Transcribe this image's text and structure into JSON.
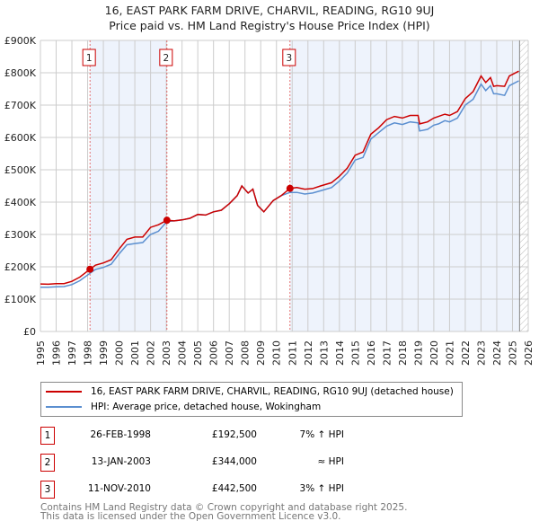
{
  "chart_data": {
    "type": "line",
    "title": "16, EAST PARK FARM DRIVE, CHARVIL, READING, RG10 9UJ",
    "subtitle": "Price paid vs. HM Land Registry's House Price Index (HPI)",
    "xlim": [
      1995,
      2026
    ],
    "ylim": [
      0,
      900000
    ],
    "x_ticks": [
      "1995",
      "1996",
      "1997",
      "1998",
      "1999",
      "2000",
      "2001",
      "2002",
      "2003",
      "2004",
      "2005",
      "2006",
      "2007",
      "2008",
      "2009",
      "2010",
      "2011",
      "2012",
      "2013",
      "2014",
      "2015",
      "2016",
      "2017",
      "2018",
      "2019",
      "2020",
      "2021",
      "2022",
      "2023",
      "2024",
      "2025",
      "2026"
    ],
    "y_ticks": [
      {
        "v": 0,
        "label": "£0"
      },
      {
        "v": 100000,
        "label": "£100K"
      },
      {
        "v": 200000,
        "label": "£200K"
      },
      {
        "v": 300000,
        "label": "£300K"
      },
      {
        "v": 400000,
        "label": "£400K"
      },
      {
        "v": 500000,
        "label": "£500K"
      },
      {
        "v": 600000,
        "label": "£600K"
      },
      {
        "v": 700000,
        "label": "£700K"
      },
      {
        "v": 800000,
        "label": "£800K"
      },
      {
        "v": 900000,
        "label": "£900K"
      }
    ],
    "grid": true,
    "shaded_ranges": [
      [
        1998.15,
        2003.04
      ],
      [
        2010.86,
        2025.45
      ]
    ],
    "hatch_from": 2025.45,
    "series": [
      {
        "name": "16, EAST PARK FARM DRIVE, CHARVIL, READING, RG10 9UJ (detached house)",
        "color": "#cc0000",
        "x": [
          1995,
          1995.5,
          1996,
          1996.5,
          1997,
          1997.5,
          1998.15,
          1998.5,
          1999,
          1999.5,
          2000,
          2000.5,
          2001,
          2001.5,
          2002,
          2002.5,
          2003.04,
          2003.5,
          2004,
          2004.5,
          2005,
          2005.5,
          2006,
          2006.5,
          2007,
          2007.5,
          2007.8,
          2008.2,
          2008.5,
          2008.8,
          2009.2,
          2009.8,
          2010.3,
          2010.86,
          2011.3,
          2011.8,
          2012.3,
          2012.8,
          2013.5,
          2014,
          2014.5,
          2015,
          2015.5,
          2016,
          2016.5,
          2017,
          2017.5,
          2018,
          2018.5,
          2019,
          2019.1,
          2019.6,
          2020,
          2020.3,
          2020.7,
          2021,
          2021.5,
          2022,
          2022.5,
          2023,
          2023.3,
          2023.6,
          2023.8,
          2024,
          2024.5,
          2024.8,
          2025,
          2025.4
        ],
        "y": [
          147000,
          146000,
          148000,
          148000,
          155000,
          168000,
          192500,
          205000,
          212000,
          222000,
          255000,
          285000,
          292000,
          292000,
          322000,
          330000,
          344000,
          342000,
          345000,
          350000,
          362000,
          360000,
          370000,
          375000,
          395000,
          420000,
          450000,
          428000,
          440000,
          390000,
          370000,
          405000,
          420000,
          442500,
          445000,
          440000,
          442000,
          450000,
          460000,
          480000,
          505000,
          545000,
          555000,
          610000,
          630000,
          655000,
          665000,
          660000,
          668000,
          668000,
          642000,
          648000,
          660000,
          665000,
          672000,
          668000,
          680000,
          720000,
          742000,
          790000,
          770000,
          785000,
          758000,
          760000,
          758000,
          790000,
          795000,
          805000
        ]
      },
      {
        "name": "HPI: Average price, detached house, Wokingham",
        "color": "#5b8fd0",
        "x": [
          1995,
          1995.5,
          1996,
          1996.5,
          1997,
          1997.5,
          1998.15,
          1998.5,
          1999,
          1999.5,
          2000,
          2000.5,
          2001,
          2001.5,
          2002,
          2002.5,
          2003.04,
          2003.5,
          2004,
          2004.5,
          2005,
          2005.5,
          2006,
          2006.5,
          2007,
          2007.5,
          2007.8,
          2008.2,
          2008.5,
          2008.8,
          2009.2,
          2009.8,
          2010.3,
          2010.86,
          2011.3,
          2011.8,
          2012.3,
          2012.8,
          2013.5,
          2014,
          2014.5,
          2015,
          2015.5,
          2016,
          2016.5,
          2017,
          2017.5,
          2018,
          2018.5,
          2019,
          2019.1,
          2019.6,
          2020,
          2020.3,
          2020.7,
          2021,
          2021.5,
          2022,
          2022.5,
          2023,
          2023.3,
          2023.6,
          2023.8,
          2024,
          2024.5,
          2024.8,
          2025,
          2025.4
        ],
        "y": [
          137000,
          137000,
          138000,
          139000,
          145000,
          157000,
          180000,
          192000,
          198000,
          208000,
          240000,
          268000,
          272000,
          275000,
          300000,
          310000,
          340000,
          342000,
          345000,
          350000,
          362000,
          360000,
          370000,
          375000,
          395000,
          420000,
          450000,
          428000,
          440000,
          390000,
          370000,
          405000,
          420000,
          430000,
          430000,
          425000,
          428000,
          435000,
          445000,
          465000,
          490000,
          530000,
          538000,
          595000,
          615000,
          635000,
          645000,
          640000,
          648000,
          645000,
          620000,
          625000,
          638000,
          642000,
          652000,
          648000,
          660000,
          700000,
          718000,
          765000,
          745000,
          760000,
          735000,
          735000,
          730000,
          760000,
          765000,
          775000
        ]
      }
    ],
    "sales": [
      {
        "n": "1",
        "x": 1998.15,
        "y": 192500,
        "date": "26-FEB-1998",
        "price": "£192,500",
        "hpi": "7% ↑ HPI"
      },
      {
        "n": "2",
        "x": 2003.04,
        "y": 344000,
        "date": "13-JAN-2003",
        "price": "£344,000",
        "hpi": "≈ HPI"
      },
      {
        "n": "3",
        "x": 2010.86,
        "y": 442500,
        "date": "11-NOV-2010",
        "price": "£442,500",
        "hpi": "3% ↑ HPI"
      }
    ]
  },
  "footer": {
    "line1": "Contains HM Land Registry data © Crown copyright and database right 2025.",
    "line2": "This data is licensed under the Open Government Licence v3.0."
  }
}
